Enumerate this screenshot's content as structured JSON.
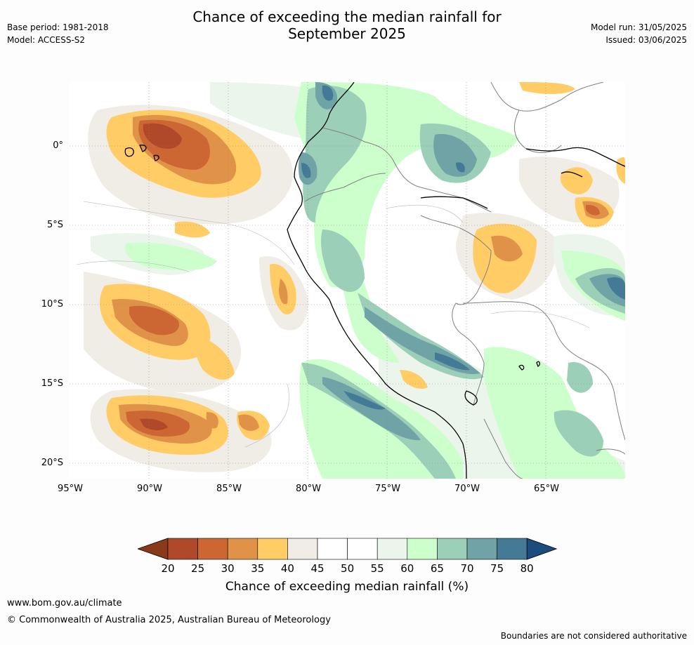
{
  "header": {
    "title_line1": "Chance of exceeding the median rainfall for",
    "title_line2": "September 2025",
    "base_period": "Base period: 1981-2018",
    "model": "Model: ACCESS-S2",
    "model_run": "Model run: 31/05/2025",
    "issued": "Issued: 03/06/2025"
  },
  "map": {
    "lat_labels": [
      "0°",
      "5°S",
      "10°S",
      "15°S",
      "20°S"
    ],
    "lon_labels": [
      "95°W",
      "90°W",
      "85°W",
      "80°W",
      "75°W",
      "70°W",
      "65°W"
    ],
    "background_color": "#ffffff",
    "coastline_color": "#000000",
    "border_color": "#808080"
  },
  "colorbar": {
    "ticks": [
      "20",
      "25",
      "30",
      "35",
      "40",
      "45",
      "50",
      "55",
      "60",
      "65",
      "70",
      "75",
      "80"
    ],
    "colors": [
      "#8a3a1c",
      "#b0492a",
      "#cc6633",
      "#e09248",
      "#ffcc66",
      "#f0ece6",
      "#ffffff",
      "#ffffff",
      "#ebf5eb",
      "#ccffcc",
      "#9ccfb8",
      "#6fa3a6",
      "#457a96",
      "#1c4b7e"
    ],
    "title": "Chance of exceeding median rainfall (%)"
  },
  "footer": {
    "url": "www.bom.gov.au/climate",
    "copyright": "© Commonwealth of Australia 2025, Australian Bureau of Meteorology",
    "disclaimer": "Boundaries are not considered authoritative"
  }
}
